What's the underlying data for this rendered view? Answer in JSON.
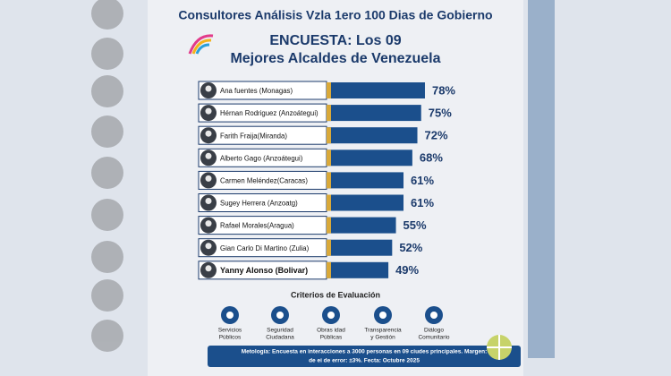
{
  "chart_data": {
    "type": "bar",
    "title": "Consultores Análisis Vzla 1ero 100 Dias de Gobierno",
    "subtitle": [
      "ENCUESTA: Los 09",
      "Mejores Alcaldes de Venezuela"
    ],
    "categories": [
      "Ana fuentes (Monagas)",
      "Hérnan Rodriguez (Anzoátegui)",
      "Farith Fraija(Miranda)",
      "Alberto Gago (Anzoátegui)",
      "Carmen Meléndez(Caracas)",
      "Sugey Herrera (Anzoatg)",
      "Rafael Morales(Aragua)",
      "Gian Carlo Di Martino (Zulia)",
      "Yanny Alonso (Bolivar)"
    ],
    "values": [
      78,
      75,
      72,
      68,
      61,
      61,
      55,
      52,
      49
    ],
    "value_labels": [
      "78%",
      "75%",
      "72%",
      "68%",
      "61%",
      "61%",
      "55%",
      "52%",
      "49%"
    ],
    "color": "#1b4f8c"
  },
  "criteria": {
    "title": "Criterios de Evaluación",
    "items": [
      [
        "Servicios",
        "Públicos"
      ],
      [
        "Seguridad",
        "Ciudadana"
      ],
      [
        "Obras idad",
        "Públicas"
      ],
      [
        "Transparencia",
        "y Gestión"
      ],
      [
        "Diálogo",
        "Comunitario"
      ]
    ]
  },
  "footer_note": [
    "Metología: Encuesta en interacciones a 3000 personas en 09 ciudes principales. Margen:",
    "de ei de error: ±3%. Fecta: Octubre 2025"
  ]
}
